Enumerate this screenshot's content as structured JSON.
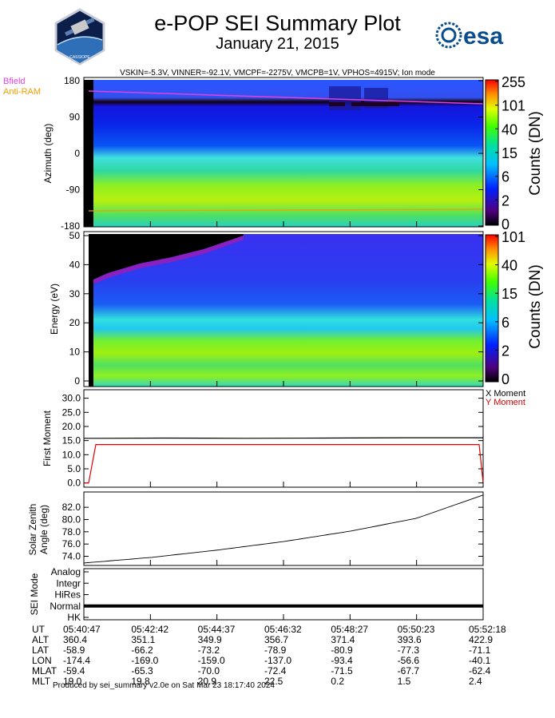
{
  "header": {
    "title": "e-POP SEI Summary Plot",
    "date": "January 21, 2015",
    "params": "VSKIN=-5.3V, VINNER=-92.1V, VMCPF=-2275V, VMCPB=1V, VPHOS=4915V; Ion mode",
    "logo_left": "CASSIOPE",
    "logo_right": "esa"
  },
  "legend": {
    "bfield": "Bfield",
    "bfield_color": "#e040e0",
    "antiram": "Anti-RAM",
    "antiram_color": "#f0a000",
    "x_moment": "X Moment",
    "x_color": "#000000",
    "y_moment": "Y Moment",
    "y_color": "#e00000"
  },
  "chart_data": [
    {
      "type": "heatmap",
      "ylabel": "Azimuth (deg)",
      "yticks": [
        "180",
        "90",
        "0",
        "-90",
        "-180"
      ],
      "ylim": [
        -180,
        180
      ],
      "colorbar_label": "Counts (DN)",
      "colorbar_ticks": [
        "255",
        "101",
        "40",
        "15",
        "6",
        "2",
        "0"
      ]
    },
    {
      "type": "heatmap",
      "ylabel": "Energy (eV)",
      "yticks": [
        "50",
        "40",
        "30",
        "20",
        "10",
        "0"
      ],
      "ylim": [
        0,
        50
      ],
      "colorbar_label": "Counts (DN)",
      "colorbar_ticks": [
        "101",
        "40",
        "15",
        "6",
        "2",
        "0"
      ]
    },
    {
      "type": "line",
      "ylabel": "First Moment",
      "yticks": [
        "30.0",
        "25.0",
        "20.0",
        "15.0",
        "10.0",
        "5.0",
        "0.0"
      ],
      "ylim": [
        -1.5,
        33
      ],
      "series": [
        {
          "name": "X Moment",
          "x": [
            0,
            0.04,
            0.2,
            0.4,
            0.6,
            0.8,
            0.99,
            1
          ],
          "values": [
            15.8,
            15.8,
            15.9,
            15.8,
            15.9,
            16.0,
            16.0,
            16.0
          ]
        },
        {
          "name": "Y Moment",
          "x": [
            0,
            0.012,
            0.03,
            0.2,
            0.4,
            0.6,
            0.8,
            0.99,
            1
          ],
          "values": [
            0.0,
            0.0,
            13.6,
            13.6,
            13.6,
            13.6,
            13.6,
            13.6,
            0.0
          ]
        }
      ]
    },
    {
      "type": "line",
      "ylabel": "Solar Zenith Angle (deg)",
      "yticks": [
        "82.0",
        "80.0",
        "78.0",
        "76.0",
        "74.0"
      ],
      "ylim": [
        72.5,
        84.5
      ],
      "series": [
        {
          "x": [
            0,
            0.167,
            0.333,
            0.5,
            0.667,
            0.833,
            1
          ],
          "values": [
            72.9,
            73.8,
            75.0,
            76.4,
            78.1,
            80.2,
            84.0
          ]
        }
      ]
    },
    {
      "type": "line",
      "ylabel": "SEI Mode",
      "yticks": [
        "Analog",
        "Integr",
        "HiRes",
        "Normal",
        "HK"
      ],
      "series": [
        {
          "x": [
            0,
            1
          ],
          "values": [
            3,
            3
          ]
        }
      ]
    }
  ],
  "time_axis": {
    "labels": [
      "UT",
      "ALT",
      "LAT",
      "LON",
      "MLAT",
      "MLT"
    ],
    "columns": [
      [
        "05:40:47",
        "360.4",
        "-58.9",
        "-174.4",
        "-59.4",
        "19.0"
      ],
      [
        "05:42:42",
        "351.1",
        "-66.2",
        "-169.0",
        "-65.3",
        "19.8"
      ],
      [
        "05:44:37",
        "349.9",
        "-73.2",
        "-159.0",
        "-70.0",
        "20.9"
      ],
      [
        "05:46:32",
        "356.7",
        "-78.9",
        "-137.0",
        "-72.4",
        "22.5"
      ],
      [
        "05:48:27",
        "371.4",
        "-80.9",
        "-93.4",
        "-71.5",
        "0.2"
      ],
      [
        "05:50:23",
        "393.6",
        "-77.3",
        "-56.6",
        "-67.7",
        "1.5"
      ],
      [
        "05:52:18",
        "422.9",
        "-71.1",
        "-40.1",
        "-62.4",
        "2.4"
      ]
    ]
  },
  "footer": "Produced by sei_summary v2.0e on Sat Mar 23 18:17:40 2024"
}
